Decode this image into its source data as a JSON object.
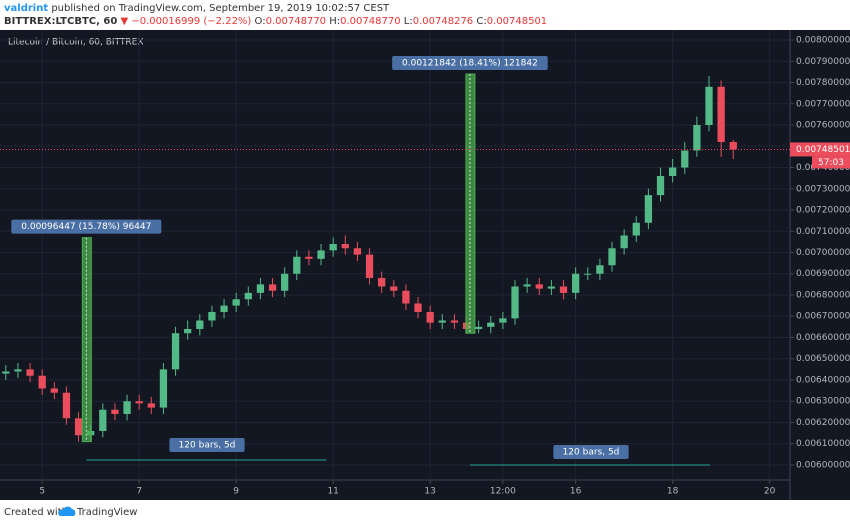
{
  "header": {
    "author": "valdrint",
    "published": "published on TradingView.com, September 19, 2019 10:02:57 CEST",
    "symbol": "BITTREX:LTCBTC, 60",
    "arrow": "▼",
    "change": "−0.00016999 (−2.22%)",
    "ohlc": [
      {
        "label": "O:",
        "value": "0.00748770"
      },
      {
        "label": "H:",
        "value": "0.00748770"
      },
      {
        "label": "L:",
        "value": "0.00748276"
      },
      {
        "label": "C:",
        "value": "0.00748501"
      }
    ]
  },
  "footer": {
    "text": "Created with",
    "brand": "TradingView"
  },
  "chart_data": {
    "type": "candlestick",
    "title": "Litecoin / Bitcoin, 60, BITTREX",
    "up_color": "#53b987",
    "down_color": "#eb4d5c",
    "grid": true,
    "x": [
      4.25,
      4.5,
      4.75,
      5,
      5.25,
      5.5,
      5.75,
      6,
      6.25,
      6.5,
      6.75,
      7,
      7.25,
      7.5,
      7.75,
      8,
      8.25,
      8.5,
      8.75,
      9,
      9.25,
      9.5,
      9.75,
      10,
      10.25,
      10.5,
      10.75,
      11,
      11.25,
      11.5,
      11.75,
      12,
      12.25,
      12.5,
      12.75,
      13,
      13.25,
      13.5,
      13.75,
      14,
      14.25,
      14.5,
      14.75,
      15,
      15.25,
      15.5,
      15.75,
      16,
      16.25,
      16.5,
      16.75,
      17,
      17.25,
      17.5,
      17.75,
      18,
      18.25,
      18.5,
      18.75,
      19,
      19.25
    ],
    "open": [
      0.00643,
      0.00644,
      0.00645,
      0.00642,
      0.00636,
      0.00634,
      0.00622,
      0.00614,
      0.00616,
      0.00626,
      0.00624,
      0.0063,
      0.00629,
      0.00627,
      0.00645,
      0.00662,
      0.00664,
      0.00668,
      0.00672,
      0.00675,
      0.00678,
      0.00681,
      0.00685,
      0.00682,
      0.0069,
      0.00698,
      0.00697,
      0.00701,
      0.00704,
      0.00702,
      0.00699,
      0.00688,
      0.00684,
      0.00682,
      0.00676,
      0.00672,
      0.00667,
      0.00668,
      0.00667,
      0.00664,
      0.00665,
      0.00667,
      0.00669,
      0.00684,
      0.00685,
      0.00683,
      0.00684,
      0.00681,
      0.0069,
      0.0069,
      0.00694,
      0.00702,
      0.00708,
      0.00714,
      0.00727,
      0.00736,
      0.0074,
      0.00748,
      0.0076,
      0.00778,
      0.00752
    ],
    "high": [
      0.00647,
      0.00648,
      0.00648,
      0.00645,
      0.00639,
      0.00637,
      0.00625,
      0.00619,
      0.00629,
      0.00629,
      0.00633,
      0.00633,
      0.00632,
      0.00648,
      0.00665,
      0.00668,
      0.00671,
      0.00675,
      0.00678,
      0.00681,
      0.00684,
      0.00688,
      0.00688,
      0.00693,
      0.00701,
      0.00701,
      0.00704,
      0.00707,
      0.00708,
      0.00705,
      0.00702,
      0.00691,
      0.00687,
      0.00685,
      0.00679,
      0.00675,
      0.00671,
      0.00671,
      0.0067,
      0.00668,
      0.0067,
      0.00672,
      0.00687,
      0.00688,
      0.00688,
      0.00687,
      0.00687,
      0.00693,
      0.00693,
      0.00697,
      0.00705,
      0.00711,
      0.00717,
      0.0073,
      0.0074,
      0.00744,
      0.00752,
      0.00764,
      0.00783,
      0.00781,
      0.00753
    ],
    "low": [
      0.0064,
      0.00641,
      0.00639,
      0.00633,
      0.00631,
      0.00619,
      0.00611,
      0.00611,
      0.00613,
      0.00621,
      0.00621,
      0.00626,
      0.00624,
      0.00624,
      0.00642,
      0.00659,
      0.00661,
      0.00665,
      0.00669,
      0.00672,
      0.00675,
      0.00678,
      0.00679,
      0.00679,
      0.00687,
      0.00694,
      0.00694,
      0.00698,
      0.00699,
      0.00696,
      0.00685,
      0.00681,
      0.00679,
      0.00673,
      0.00669,
      0.00664,
      0.00664,
      0.00664,
      0.00662,
      0.00662,
      0.00662,
      0.00664,
      0.00666,
      0.00681,
      0.0068,
      0.0068,
      0.00678,
      0.00678,
      0.00687,
      0.00687,
      0.00691,
      0.00699,
      0.00705,
      0.00711,
      0.00724,
      0.00733,
      0.00737,
      0.00745,
      0.00757,
      0.00745,
      0.00744
    ],
    "close": [
      0.00644,
      0.00645,
      0.00642,
      0.00636,
      0.00634,
      0.00622,
      0.00614,
      0.00616,
      0.00626,
      0.00624,
      0.0063,
      0.00629,
      0.00627,
      0.00645,
      0.00662,
      0.00664,
      0.00668,
      0.00672,
      0.00675,
      0.00678,
      0.00681,
      0.00685,
      0.00682,
      0.0069,
      0.00698,
      0.00697,
      0.00701,
      0.00704,
      0.00702,
      0.00699,
      0.00688,
      0.00684,
      0.00682,
      0.00676,
      0.00672,
      0.00667,
      0.00668,
      0.00667,
      0.00664,
      0.00665,
      0.00667,
      0.00669,
      0.00684,
      0.00685,
      0.00683,
      0.00684,
      0.00681,
      0.0069,
      0.0069,
      0.00694,
      0.00702,
      0.00708,
      0.00714,
      0.00727,
      0.00736,
      0.0074,
      0.00748,
      0.0076,
      0.00778,
      0.00752,
      0.007485
    ],
    "xlim": [
      4.13,
      20.42
    ],
    "xticks": [
      5,
      7,
      9,
      11,
      13,
      {
        "value": 14.5,
        "label": "12:00"
      },
      16,
      18,
      20
    ],
    "ylim": [
      0.00595,
      0.00805
    ],
    "yticks": [
      {
        "value": 0.006,
        "label": "0.00600000"
      },
      {
        "value": 0.0061,
        "label": "0.00610000"
      },
      {
        "value": 0.0062,
        "label": "0.00620000"
      },
      {
        "value": 0.0063,
        "label": "0.00630000"
      },
      {
        "value": 0.0064,
        "label": "0.00640000"
      },
      {
        "value": 0.0065,
        "label": "0.00650000"
      },
      {
        "value": 0.0066,
        "label": "0.00660000"
      },
      {
        "value": 0.0067,
        "label": "0.00670000"
      },
      {
        "value": 0.0068,
        "label": "0.00680000"
      },
      {
        "value": 0.0069,
        "label": "0.00690000"
      },
      {
        "value": 0.007,
        "label": "0.00700000"
      },
      {
        "value": 0.0071,
        "label": "0.00710000"
      },
      {
        "value": 0.0072,
        "label": "0.00720000"
      },
      {
        "value": 0.0073,
        "label": "0.00730000"
      },
      {
        "value": 0.0074,
        "label": "0.00740000"
      },
      {
        "value": 0.0075,
        "label": "0.00750000"
      },
      {
        "value": 0.0076,
        "label": "0.00760000"
      },
      {
        "value": 0.0077,
        "label": "0.00770000"
      },
      {
        "value": 0.0078,
        "label": "0.00780000"
      },
      {
        "value": 0.0079,
        "label": "0.00790000"
      },
      {
        "value": 0.008,
        "label": "0.00800000"
      }
    ],
    "last_price": {
      "value": 0.00748501,
      "label": "0.00748501"
    },
    "countdown": "57:03",
    "measures": [
      {
        "label": "0.00096447 (15.78%) 96447",
        "bars_label": "120 bars, 5d",
        "price_range": [
          0.00611,
          0.00707
        ],
        "time_range": [
          5.91,
          10.86
        ]
      },
      {
        "label": "0.00121842 (18.41%) 121842",
        "bars_label": "120 bars, 5d",
        "price_range": [
          0.00662,
          0.00784
        ],
        "time_range": [
          13.82,
          18.77
        ]
      }
    ]
  }
}
